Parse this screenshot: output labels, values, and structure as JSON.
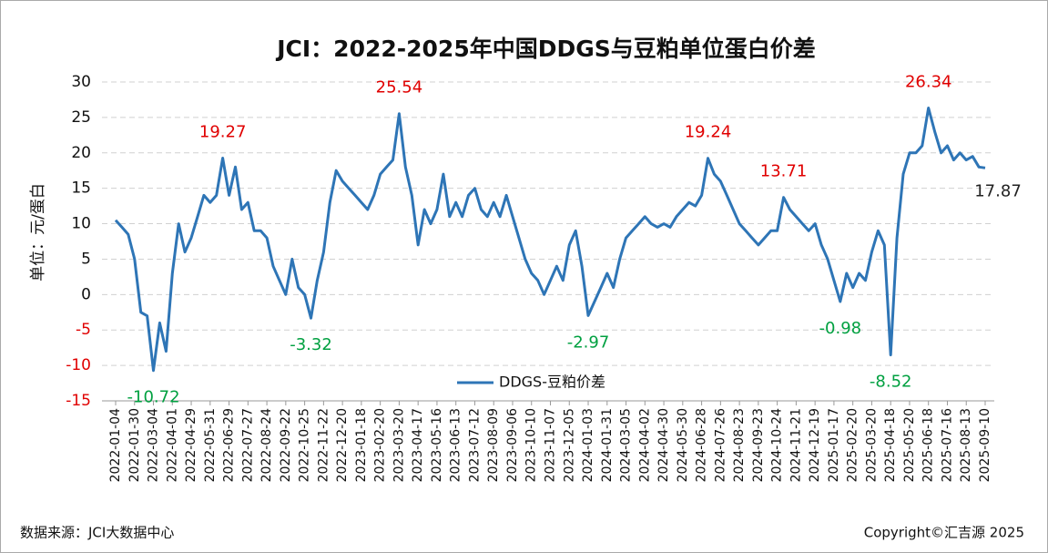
{
  "chart_data": {
    "type": "line",
    "title": "JCI：2022-2025年中国DDGS与豆粕单位蛋白价差",
    "y_label": "单位：元/蛋白",
    "source": "数据来源：JCI大数据中心",
    "copyright": "Copyright©汇吉源 2025",
    "ylim": [
      -15,
      30
    ],
    "yticks": [
      -15,
      -10,
      -5,
      0,
      5,
      10,
      15,
      20,
      25,
      30
    ],
    "grid": true,
    "legend": "bottom",
    "negative_tick_color": "#e00000",
    "positive_label_color": "#e00000",
    "negative_label_color": "#00a040",
    "last_label_color": "#222222",
    "categories": [
      "2022-01-04",
      null,
      null,
      "2022-01-30",
      null,
      null,
      "2022-03-04",
      null,
      null,
      "2022-04-01",
      null,
      null,
      "2022-04-29",
      null,
      null,
      "2022-05-31",
      null,
      null,
      "2022-06-29",
      null,
      null,
      "2022-07-27",
      null,
      null,
      "2022-08-24",
      null,
      null,
      "2022-09-22",
      null,
      null,
      "2022-10-25",
      null,
      null,
      "2022-11-22",
      null,
      null,
      "2022-12-20",
      null,
      null,
      "2023-01-18",
      null,
      null,
      "2023-02-20",
      null,
      null,
      "2023-03-20",
      null,
      null,
      "2023-04-17",
      null,
      null,
      "2023-05-16",
      null,
      null,
      "2023-06-13",
      null,
      null,
      "2023-07-12",
      null,
      null,
      "2023-08-09",
      null,
      null,
      "2023-09-06",
      null,
      null,
      "2023-10-10",
      null,
      null,
      "2023-11-07",
      null,
      null,
      "2023-12-05",
      null,
      null,
      "2024-01-03",
      null,
      null,
      "2024-01-31",
      null,
      null,
      "2024-03-05",
      null,
      null,
      "2024-04-02",
      null,
      null,
      "2024-04-30",
      null,
      null,
      "2024-05-30",
      null,
      null,
      "2024-06-28",
      null,
      null,
      "2024-07-26",
      null,
      null,
      "2024-08-23",
      null,
      null,
      "2024-09-23",
      null,
      null,
      "2024-10-24",
      null,
      null,
      "2024-11-21",
      null,
      null,
      "2024-12-19",
      null,
      null,
      "2025-01-17",
      null,
      null,
      "2025-02-20",
      null,
      null,
      "2025-03-20",
      null,
      null,
      "2025-04-18",
      null,
      null,
      "2025-05-20",
      null,
      null,
      "2025-06-18",
      null,
      null,
      "2025-07-16",
      null,
      null,
      "2025-08-13",
      null,
      null,
      "2025-09-10"
    ],
    "series": [
      {
        "name": "DDGS-豆粕价差",
        "color": "#2e75b6",
        "values": [
          10.5,
          9.5,
          8.5,
          5,
          -2.5,
          -3,
          -10.72,
          -4,
          -8,
          3,
          10,
          6,
          8,
          11,
          14,
          13,
          14,
          19.27,
          14,
          18,
          12,
          13,
          9,
          9,
          8,
          4,
          2,
          0,
          5,
          1,
          0,
          -3.32,
          2,
          6,
          13,
          17.5,
          16,
          15,
          14,
          13,
          12,
          14,
          17,
          18,
          19,
          25.54,
          18,
          14,
          7,
          12,
          10,
          12,
          17,
          11,
          13,
          11,
          14,
          15,
          12,
          11,
          13,
          11,
          14,
          11,
          8,
          5,
          3,
          2,
          0,
          2,
          4,
          2,
          7,
          9,
          4,
          -2.97,
          -1,
          1,
          3,
          1,
          5,
          8,
          9,
          10,
          11,
          10,
          9.5,
          10,
          9.5,
          11,
          12,
          13,
          12.5,
          14,
          19.24,
          17,
          16,
          14,
          12,
          10,
          9,
          8,
          7,
          8,
          9,
          9,
          13.71,
          12,
          11,
          10,
          9,
          10,
          7,
          5,
          2,
          -0.98,
          3,
          1,
          3,
          2,
          6,
          9,
          7,
          -8.52,
          8,
          17,
          20,
          20,
          21,
          26.34,
          23,
          20,
          21,
          19,
          20,
          19,
          19.5,
          18,
          17.87
        ],
        "value_labels": [
          null,
          null,
          null,
          null,
          null,
          null,
          "-10.72",
          null,
          null,
          null,
          null,
          null,
          null,
          null,
          null,
          null,
          null,
          "19.27",
          null,
          null,
          null,
          null,
          null,
          null,
          null,
          null,
          null,
          null,
          null,
          null,
          null,
          "-3.32",
          null,
          null,
          null,
          null,
          null,
          null,
          null,
          null,
          null,
          null,
          null,
          null,
          null,
          "25.54",
          null,
          null,
          null,
          null,
          null,
          null,
          null,
          null,
          null,
          null,
          null,
          null,
          null,
          null,
          null,
          null,
          null,
          null,
          null,
          null,
          null,
          null,
          null,
          null,
          null,
          null,
          null,
          null,
          null,
          "-2.97",
          null,
          null,
          null,
          null,
          null,
          null,
          null,
          null,
          null,
          null,
          null,
          null,
          null,
          null,
          null,
          null,
          null,
          null,
          "19.24",
          null,
          null,
          null,
          null,
          null,
          null,
          null,
          null,
          null,
          null,
          null,
          "13.71",
          null,
          null,
          null,
          null,
          null,
          null,
          null,
          null,
          "-0.98",
          null,
          null,
          null,
          null,
          null,
          null,
          null,
          "-8.52",
          null,
          null,
          null,
          null,
          null,
          "26.34",
          null,
          null,
          null,
          null,
          null,
          null,
          null,
          null,
          "17.87"
        ]
      }
    ]
  }
}
